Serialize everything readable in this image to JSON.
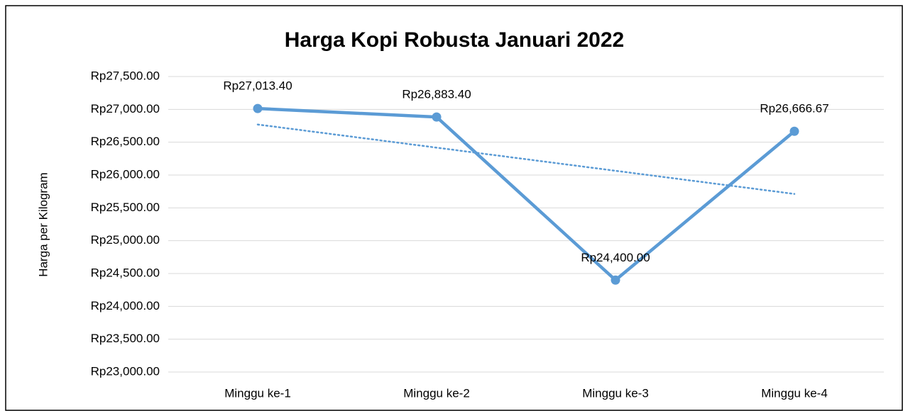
{
  "chart_data": {
    "type": "line",
    "title": "Harga Kopi Robusta Januari 2022",
    "y_label": "Harga per Kilogram",
    "categories": [
      "Minggu ke-1",
      "Minggu ke-2",
      "Minggu ke-3",
      "Minggu ke-4"
    ],
    "series": [
      {
        "color": "#5b9bd5",
        "values": [
          27013.4,
          26883.4,
          24400,
          26666.67
        ],
        "value_labels": [
          "Rp27,013.40",
          "Rp26,883.40",
          "Rp24,400.00",
          "Rp26,666.67"
        ],
        "trendline": "linear"
      }
    ],
    "ylim": [
      23000,
      27500
    ],
    "yticks": [
      {
        "value": 23000,
        "label": "Rp23,000.00"
      },
      {
        "value": 23500,
        "label": "Rp23,500.00"
      },
      {
        "value": 24000,
        "label": "Rp24,000.00"
      },
      {
        "value": 24500,
        "label": "Rp24,500.00"
      },
      {
        "value": 25000,
        "label": "Rp25,000.00"
      },
      {
        "value": 25500,
        "label": "Rp25,500.00"
      },
      {
        "value": 26000,
        "label": "Rp26,000.00"
      },
      {
        "value": 26500,
        "label": "Rp26,500.00"
      },
      {
        "value": 27000,
        "label": "Rp27,000.00"
      },
      {
        "value": 27500,
        "label": "Rp27,500.00"
      }
    ],
    "grid": true
  }
}
